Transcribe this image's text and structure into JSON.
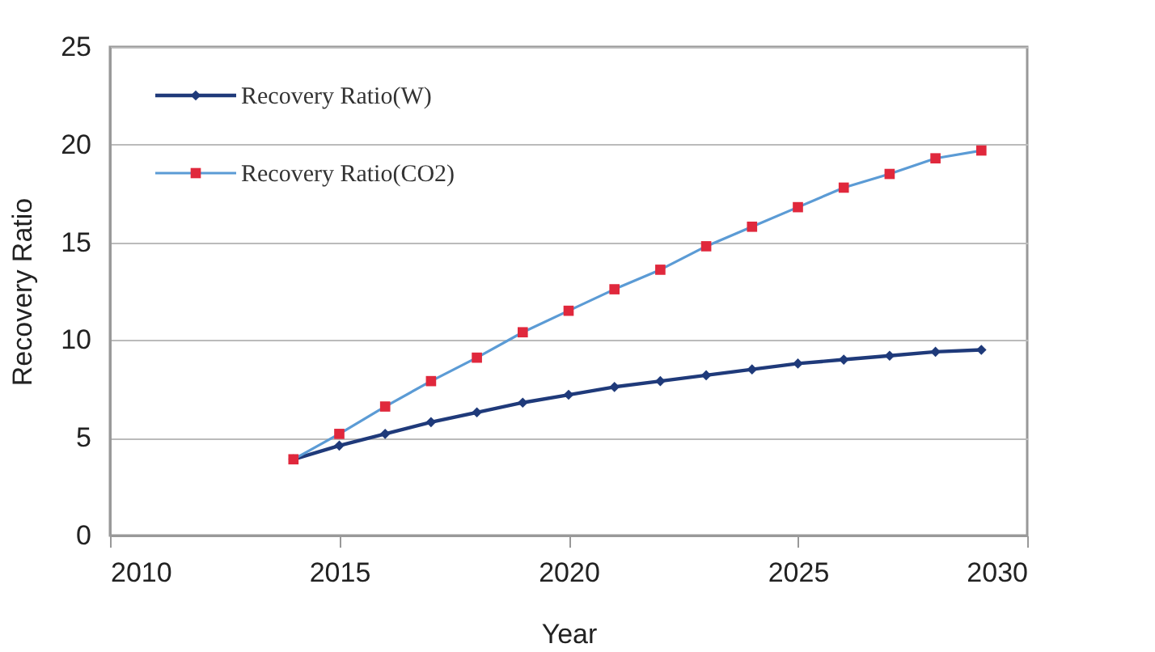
{
  "chart_data": {
    "type": "line",
    "xlabel": "Year",
    "ylabel": "Recovery Ratio",
    "x": [
      2014,
      2015,
      2016,
      2017,
      2018,
      2019,
      2020,
      2021,
      2022,
      2023,
      2024,
      2025,
      2026,
      2027,
      2028,
      2029
    ],
    "series": [
      {
        "name": "Recovery Ratio(W)",
        "color": "#1f3a7a",
        "marker": "diamond",
        "values": [
          3.9,
          4.6,
          5.2,
          5.8,
          6.3,
          6.8,
          7.2,
          7.6,
          7.9,
          8.2,
          8.5,
          8.8,
          9.0,
          9.2,
          9.4,
          9.5
        ]
      },
      {
        "name": "Recovery Ratio(CO2)",
        "color": "#5b9bd5",
        "marker": "square",
        "values": [
          3.9,
          5.2,
          6.6,
          7.9,
          9.1,
          10.4,
          11.5,
          12.6,
          13.6,
          14.8,
          15.8,
          16.8,
          17.8,
          18.5,
          19.3,
          19.7
        ]
      }
    ],
    "xlim": [
      2010,
      2030
    ],
    "xticks": [
      2010,
      2015,
      2020,
      2025,
      2030
    ],
    "ylim": [
      0,
      25
    ],
    "yticks": [
      0,
      5,
      10,
      15,
      20,
      25
    ],
    "grid": "y",
    "legend": "top left",
    "line_style": "solid"
  }
}
